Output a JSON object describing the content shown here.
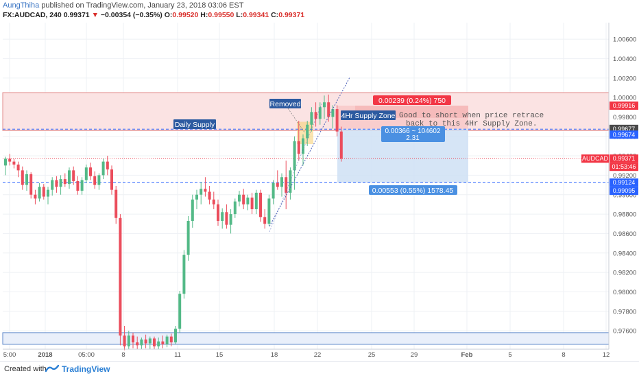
{
  "header": {
    "author": "AungThiha",
    "published": "published on TradingView.com, January 23, 2018 03:06 EST",
    "symbol": "FX:AUDCAD, 240",
    "last": "0.99371",
    "change": "−0.00354 (−0.35%)",
    "open_label": "O:",
    "open": "0.99520",
    "high_label": "H:",
    "high": "0.99550",
    "low_label": "L:",
    "low": "0.99341",
    "close_label": "C:",
    "close": "0.99371"
  },
  "footer": {
    "created_with": "Created with",
    "brand": "TradingView"
  },
  "colors": {
    "up": "#53b987",
    "down": "#eb4d5c",
    "supply_zone": "#f8c9c9",
    "target_zone": "#cfe0f5",
    "dashed": "#2962ff",
    "accent_red": "#f23645",
    "accent_blue": "#4a90e2"
  },
  "chart_data": {
    "type": "candlestick",
    "timeframe": "240",
    "ylim": [
      0.9741,
      1.0077
    ],
    "y_ticks": [
      "1.00600",
      "1.00400",
      "1.00200",
      "1.00000",
      "0.99800",
      "0.99600",
      "0.99400",
      "0.99200",
      "0.99000",
      "0.98800",
      "0.98600",
      "0.98400",
      "0.98200",
      "0.98000",
      "0.97800",
      "0.97600"
    ],
    "x_ticks": [
      "5:00",
      "2018",
      "05:00",
      "8",
      "11",
      "15",
      "18",
      "22",
      "25",
      "29",
      "Feb",
      "5",
      "8",
      "12"
    ],
    "price_tags": [
      {
        "label": "0.99916",
        "price": 0.99916,
        "color": "#f23645"
      },
      {
        "label": "0.99677",
        "price": 0.99677,
        "color": "#4a4a4a"
      },
      {
        "label": "0.99674",
        "price": 0.99674,
        "color": "#2962ff"
      },
      {
        "label": "AUDCAD",
        "price": 0.99371,
        "color": "#f23645"
      },
      {
        "label": "0.99371",
        "price": 0.99371,
        "color": "#f23645"
      },
      {
        "label": "01:53:46",
        "price": 0.9929,
        "color": "#f23645"
      },
      {
        "label": "0.99124",
        "price": 0.99124,
        "color": "#2962ff"
      },
      {
        "label": "0.99095",
        "price": 0.99095,
        "color": "#2962ff"
      }
    ],
    "annotations": {
      "daily_supply": "Daily Supply",
      "removed": "Removed",
      "h4_supply": "4Hr Supply Zone",
      "comment_line1": "Good to short when price retrace",
      "comment_line2": "back to this 4Hr Supply Zone.",
      "risk": "0.00239 (0.24%) 750",
      "ratio_line1": "0.00366 ~ 104602",
      "ratio_line2": "2.31",
      "reward": "0.00553 (0.55%) 1578.45"
    },
    "zones": {
      "daily_supply": [
        0.9966,
        1.0005
      ],
      "h4_supply": [
        0.99916,
        0.9979
      ],
      "short_stop": [
        0.99916,
        0.99677
      ],
      "short_target": [
        0.99677,
        0.99124
      ],
      "lower_demand": [
        0.9746,
        0.9758
      ]
    },
    "levels": {
      "dashed_upper": 0.99674,
      "dashed_lower": 0.99124,
      "last_price": 0.99371
    },
    "candles": [
      {
        "o": 0.993,
        "h": 0.9939,
        "l": 0.992,
        "c": 0.9937
      },
      {
        "o": 0.9937,
        "h": 0.9942,
        "l": 0.993,
        "c": 0.9934
      },
      {
        "o": 0.9934,
        "h": 0.9937,
        "l": 0.9927,
        "c": 0.9931
      },
      {
        "o": 0.9931,
        "h": 0.9934,
        "l": 0.9918,
        "c": 0.9925
      },
      {
        "o": 0.9925,
        "h": 0.9929,
        "l": 0.9905,
        "c": 0.991
      },
      {
        "o": 0.991,
        "h": 0.9925,
        "l": 0.9904,
        "c": 0.9921
      },
      {
        "o": 0.9921,
        "h": 0.9923,
        "l": 0.9896,
        "c": 0.99
      },
      {
        "o": 0.99,
        "h": 0.9905,
        "l": 0.989,
        "c": 0.9896
      },
      {
        "o": 0.9896,
        "h": 0.9912,
        "l": 0.9893,
        "c": 0.9908
      },
      {
        "o": 0.9908,
        "h": 0.9911,
        "l": 0.9895,
        "c": 0.9898
      },
      {
        "o": 0.9898,
        "h": 0.9908,
        "l": 0.989,
        "c": 0.9905
      },
      {
        "o": 0.9905,
        "h": 0.9918,
        "l": 0.9899,
        "c": 0.9915
      },
      {
        "o": 0.9915,
        "h": 0.9919,
        "l": 0.9902,
        "c": 0.9908
      },
      {
        "o": 0.9908,
        "h": 0.992,
        "l": 0.99,
        "c": 0.9916
      },
      {
        "o": 0.9916,
        "h": 0.9922,
        "l": 0.9908,
        "c": 0.9911
      },
      {
        "o": 0.9911,
        "h": 0.9928,
        "l": 0.9906,
        "c": 0.9925
      },
      {
        "o": 0.9925,
        "h": 0.9929,
        "l": 0.991,
        "c": 0.9914
      },
      {
        "o": 0.9914,
        "h": 0.9919,
        "l": 0.99,
        "c": 0.9904
      },
      {
        "o": 0.9904,
        "h": 0.9918,
        "l": 0.99,
        "c": 0.9915
      },
      {
        "o": 0.9915,
        "h": 0.9931,
        "l": 0.9912,
        "c": 0.9928
      },
      {
        "o": 0.9928,
        "h": 0.9933,
        "l": 0.9915,
        "c": 0.9919
      },
      {
        "o": 0.9919,
        "h": 0.9924,
        "l": 0.9906,
        "c": 0.991
      },
      {
        "o": 0.991,
        "h": 0.9922,
        "l": 0.9905,
        "c": 0.992
      },
      {
        "o": 0.992,
        "h": 0.9937,
        "l": 0.9916,
        "c": 0.9934
      },
      {
        "o": 0.9934,
        "h": 0.994,
        "l": 0.992,
        "c": 0.9926
      },
      {
        "o": 0.9926,
        "h": 0.993,
        "l": 0.99,
        "c": 0.9905
      },
      {
        "o": 0.9905,
        "h": 0.9909,
        "l": 0.987,
        "c": 0.9876
      },
      {
        "o": 0.9876,
        "h": 0.988,
        "l": 0.9745,
        "c": 0.9755
      },
      {
        "o": 0.9755,
        "h": 0.9765,
        "l": 0.974,
        "c": 0.9744
      },
      {
        "o": 0.9744,
        "h": 0.976,
        "l": 0.9741,
        "c": 0.9755
      },
      {
        "o": 0.9755,
        "h": 0.9758,
        "l": 0.9742,
        "c": 0.9748
      },
      {
        "o": 0.9748,
        "h": 0.9754,
        "l": 0.9741,
        "c": 0.9745
      },
      {
        "o": 0.9745,
        "h": 0.9753,
        "l": 0.9741,
        "c": 0.9751
      },
      {
        "o": 0.9751,
        "h": 0.9756,
        "l": 0.9742,
        "c": 0.9747
      },
      {
        "o": 0.9747,
        "h": 0.9754,
        "l": 0.9741,
        "c": 0.9752
      },
      {
        "o": 0.9752,
        "h": 0.9754,
        "l": 0.9741,
        "c": 0.9744
      },
      {
        "o": 0.9744,
        "h": 0.9753,
        "l": 0.9741,
        "c": 0.9749
      },
      {
        "o": 0.9749,
        "h": 0.9755,
        "l": 0.9742,
        "c": 0.9746
      },
      {
        "o": 0.9746,
        "h": 0.9756,
        "l": 0.9743,
        "c": 0.9754
      },
      {
        "o": 0.9754,
        "h": 0.9757,
        "l": 0.9744,
        "c": 0.9748
      },
      {
        "o": 0.9748,
        "h": 0.9765,
        "l": 0.9746,
        "c": 0.9762
      },
      {
        "o": 0.9762,
        "h": 0.9801,
        "l": 0.9758,
        "c": 0.9798
      },
      {
        "o": 0.9798,
        "h": 0.9843,
        "l": 0.9793,
        "c": 0.9838
      },
      {
        "o": 0.9838,
        "h": 0.9878,
        "l": 0.9832,
        "c": 0.9873
      },
      {
        "o": 0.9873,
        "h": 0.99,
        "l": 0.9866,
        "c": 0.9895
      },
      {
        "o": 0.9895,
        "h": 0.9905,
        "l": 0.9885,
        "c": 0.99
      },
      {
        "o": 0.99,
        "h": 0.9913,
        "l": 0.989,
        "c": 0.9906
      },
      {
        "o": 0.9906,
        "h": 0.9918,
        "l": 0.9898,
        "c": 0.9903
      },
      {
        "o": 0.9903,
        "h": 0.9909,
        "l": 0.989,
        "c": 0.9895
      },
      {
        "o": 0.9895,
        "h": 0.9903,
        "l": 0.9885,
        "c": 0.989
      },
      {
        "o": 0.989,
        "h": 0.9895,
        "l": 0.9868,
        "c": 0.9873
      },
      {
        "o": 0.9873,
        "h": 0.9886,
        "l": 0.9865,
        "c": 0.9882
      },
      {
        "o": 0.9882,
        "h": 0.989,
        "l": 0.9865,
        "c": 0.9869
      },
      {
        "o": 0.9869,
        "h": 0.9885,
        "l": 0.986,
        "c": 0.988
      },
      {
        "o": 0.988,
        "h": 0.9896,
        "l": 0.9876,
        "c": 0.9893
      },
      {
        "o": 0.9893,
        "h": 0.9904,
        "l": 0.9888,
        "c": 0.99
      },
      {
        "o": 0.99,
        "h": 0.9906,
        "l": 0.9885,
        "c": 0.989
      },
      {
        "o": 0.989,
        "h": 0.99,
        "l": 0.9884,
        "c": 0.9897
      },
      {
        "o": 0.9897,
        "h": 0.9902,
        "l": 0.988,
        "c": 0.9885
      },
      {
        "o": 0.9885,
        "h": 0.9905,
        "l": 0.988,
        "c": 0.9902
      },
      {
        "o": 0.9902,
        "h": 0.9905,
        "l": 0.9872,
        "c": 0.9877
      },
      {
        "o": 0.9877,
        "h": 0.9885,
        "l": 0.9865,
        "c": 0.987
      },
      {
        "o": 0.987,
        "h": 0.99,
        "l": 0.9868,
        "c": 0.9896
      },
      {
        "o": 0.9896,
        "h": 0.9915,
        "l": 0.989,
        "c": 0.9912
      },
      {
        "o": 0.9912,
        "h": 0.9925,
        "l": 0.9905,
        "c": 0.9908
      },
      {
        "o": 0.9908,
        "h": 0.9922,
        "l": 0.9898,
        "c": 0.9918
      },
      {
        "o": 0.9918,
        "h": 0.9935,
        "l": 0.9885,
        "c": 0.9902
      },
      {
        "o": 0.9902,
        "h": 0.9928,
        "l": 0.9895,
        "c": 0.9925
      },
      {
        "o": 0.9925,
        "h": 0.996,
        "l": 0.9905,
        "c": 0.9955
      },
      {
        "o": 0.9955,
        "h": 0.9976,
        "l": 0.9935,
        "c": 0.9942
      },
      {
        "o": 0.9942,
        "h": 0.9962,
        "l": 0.993,
        "c": 0.9958
      },
      {
        "o": 0.9958,
        "h": 0.9976,
        "l": 0.995,
        "c": 0.9972
      },
      {
        "o": 0.9972,
        "h": 0.999,
        "l": 0.9965,
        "c": 0.9985
      },
      {
        "o": 0.9985,
        "h": 0.9995,
        "l": 0.997,
        "c": 0.9978
      },
      {
        "o": 0.9978,
        "h": 0.9995,
        "l": 0.9972,
        "c": 0.999
      },
      {
        "o": 0.999,
        "h": 1.0002,
        "l": 0.9978,
        "c": 0.9995
      },
      {
        "o": 0.9995,
        "h": 1.0003,
        "l": 0.9975,
        "c": 0.998
      },
      {
        "o": 0.998,
        "h": 0.9992,
        "l": 0.9968,
        "c": 0.9988
      },
      {
        "o": 0.9988,
        "h": 0.9992,
        "l": 0.996,
        "c": 0.9965
      },
      {
        "o": 0.9965,
        "h": 0.997,
        "l": 0.9934,
        "c": 0.99371
      }
    ]
  }
}
